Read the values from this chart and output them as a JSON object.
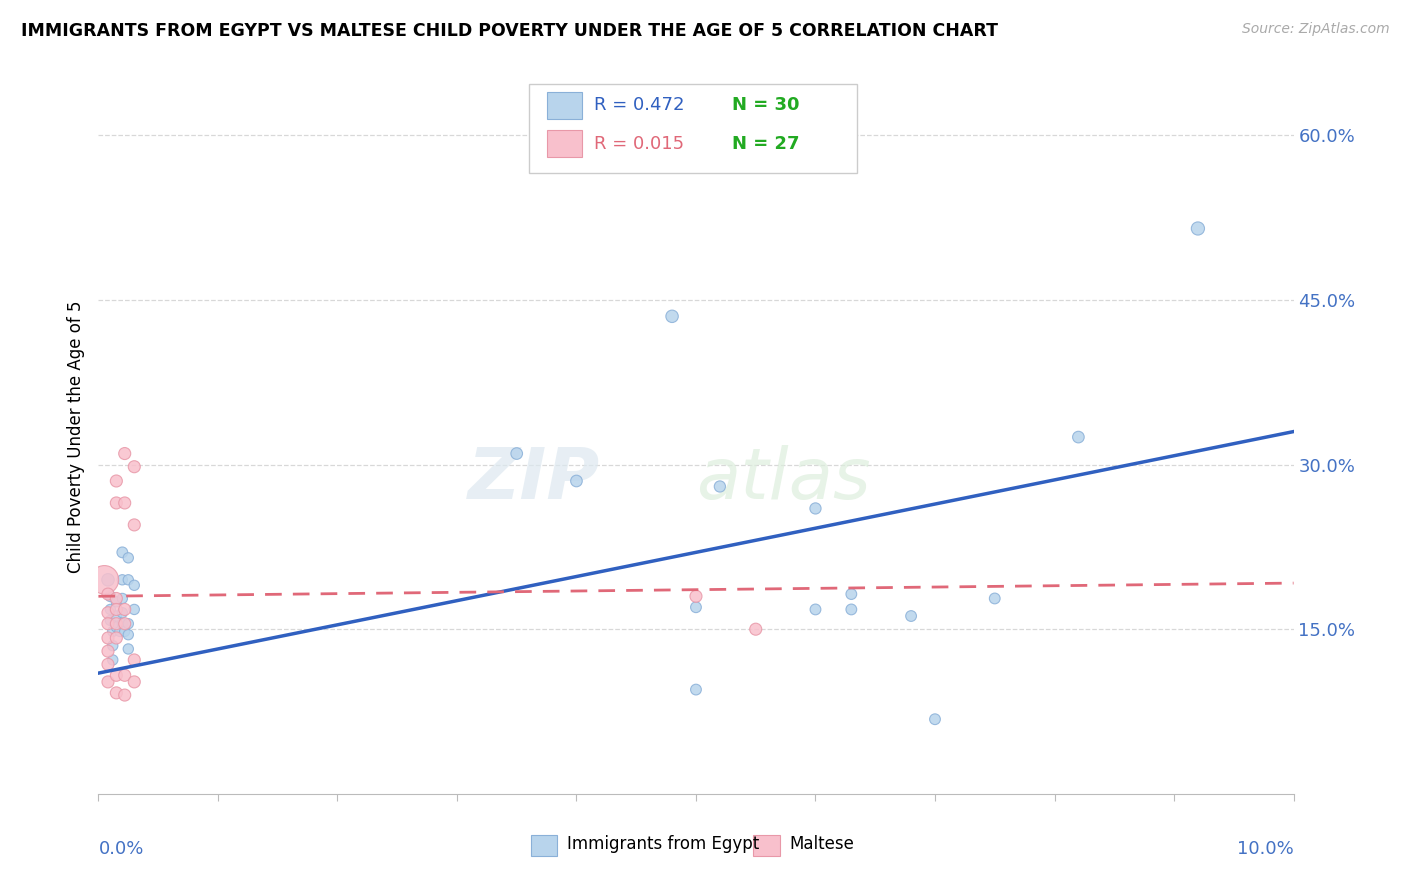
{
  "title": "IMMIGRANTS FROM EGYPT VS MALTESE CHILD POVERTY UNDER THE AGE OF 5 CORRELATION CHART",
  "source": "Source: ZipAtlas.com",
  "ylabel": "Child Poverty Under the Age of 5",
  "xlim": [
    0.0,
    0.1
  ],
  "ylim": [
    0.0,
    0.65
  ],
  "yticks": [
    0.15,
    0.3,
    0.45,
    0.6
  ],
  "ytick_labels": [
    "15.0%",
    "30.0%",
    "45.0%",
    "60.0%"
  ],
  "r_egypt": 0.472,
  "n_egypt": 30,
  "r_maltese": 0.015,
  "n_maltese": 27,
  "watermark_zip": "ZIP",
  "watermark_atlas": "atlas",
  "blue_face": "#b8d4ec",
  "blue_edge": "#8ab0d8",
  "pink_face": "#f8c0cc",
  "pink_edge": "#e898a8",
  "blue_line_color": "#3060c0",
  "pink_line_color": "#e06878",
  "grid_color": "#d8d8d8",
  "axis_color": "#4472c4",
  "blue_scatter": [
    [
      0.0008,
      0.195
    ],
    [
      0.001,
      0.18
    ],
    [
      0.001,
      0.168
    ],
    [
      0.001,
      0.158
    ],
    [
      0.0012,
      0.148
    ],
    [
      0.0012,
      0.135
    ],
    [
      0.0012,
      0.122
    ],
    [
      0.0015,
      0.175
    ],
    [
      0.0015,
      0.162
    ],
    [
      0.0015,
      0.152
    ],
    [
      0.0018,
      0.148
    ],
    [
      0.002,
      0.22
    ],
    [
      0.002,
      0.195
    ],
    [
      0.002,
      0.178
    ],
    [
      0.002,
      0.165
    ],
    [
      0.002,
      0.155
    ],
    [
      0.0022,
      0.148
    ],
    [
      0.0025,
      0.215
    ],
    [
      0.0025,
      0.195
    ],
    [
      0.0025,
      0.155
    ],
    [
      0.0025,
      0.145
    ],
    [
      0.0025,
      0.132
    ],
    [
      0.003,
      0.19
    ],
    [
      0.003,
      0.168
    ],
    [
      0.035,
      0.31
    ],
    [
      0.04,
      0.285
    ],
    [
      0.048,
      0.435
    ],
    [
      0.05,
      0.17
    ],
    [
      0.05,
      0.095
    ],
    [
      0.052,
      0.28
    ],
    [
      0.06,
      0.26
    ],
    [
      0.06,
      0.168
    ],
    [
      0.063,
      0.182
    ],
    [
      0.063,
      0.168
    ],
    [
      0.068,
      0.162
    ],
    [
      0.07,
      0.068
    ],
    [
      0.075,
      0.178
    ],
    [
      0.082,
      0.325
    ],
    [
      0.092,
      0.515
    ]
  ],
  "blue_sizes": [
    80,
    60,
    55,
    55,
    55,
    55,
    55,
    55,
    55,
    55,
    55,
    60,
    55,
    55,
    55,
    55,
    55,
    55,
    55,
    55,
    55,
    55,
    55,
    55,
    70,
    70,
    80,
    60,
    60,
    65,
    65,
    60,
    60,
    60,
    60,
    60,
    60,
    70,
    90
  ],
  "pink_scatter": [
    [
      0.0005,
      0.195
    ],
    [
      0.0008,
      0.182
    ],
    [
      0.0008,
      0.165
    ],
    [
      0.0008,
      0.155
    ],
    [
      0.0008,
      0.142
    ],
    [
      0.0008,
      0.13
    ],
    [
      0.0008,
      0.118
    ],
    [
      0.0008,
      0.102
    ],
    [
      0.0015,
      0.285
    ],
    [
      0.0015,
      0.265
    ],
    [
      0.0015,
      0.178
    ],
    [
      0.0015,
      0.168
    ],
    [
      0.0015,
      0.155
    ],
    [
      0.0015,
      0.142
    ],
    [
      0.0015,
      0.108
    ],
    [
      0.0015,
      0.092
    ],
    [
      0.0022,
      0.31
    ],
    [
      0.0022,
      0.265
    ],
    [
      0.0022,
      0.168
    ],
    [
      0.0022,
      0.155
    ],
    [
      0.0022,
      0.108
    ],
    [
      0.0022,
      0.09
    ],
    [
      0.003,
      0.298
    ],
    [
      0.003,
      0.245
    ],
    [
      0.003,
      0.122
    ],
    [
      0.003,
      0.102
    ],
    [
      0.05,
      0.18
    ],
    [
      0.055,
      0.15
    ]
  ],
  "pink_sizes": [
    420,
    75,
    75,
    75,
    75,
    75,
    75,
    75,
    75,
    75,
    75,
    75,
    75,
    75,
    75,
    75,
    75,
    75,
    75,
    75,
    75,
    75,
    75,
    75,
    75,
    75,
    75,
    75
  ],
  "blue_line_x": [
    0.0,
    0.1
  ],
  "blue_line_y": [
    0.11,
    0.33
  ],
  "pink_line_x": [
    0.0,
    0.1
  ],
  "pink_line_y": [
    0.18,
    0.192
  ]
}
